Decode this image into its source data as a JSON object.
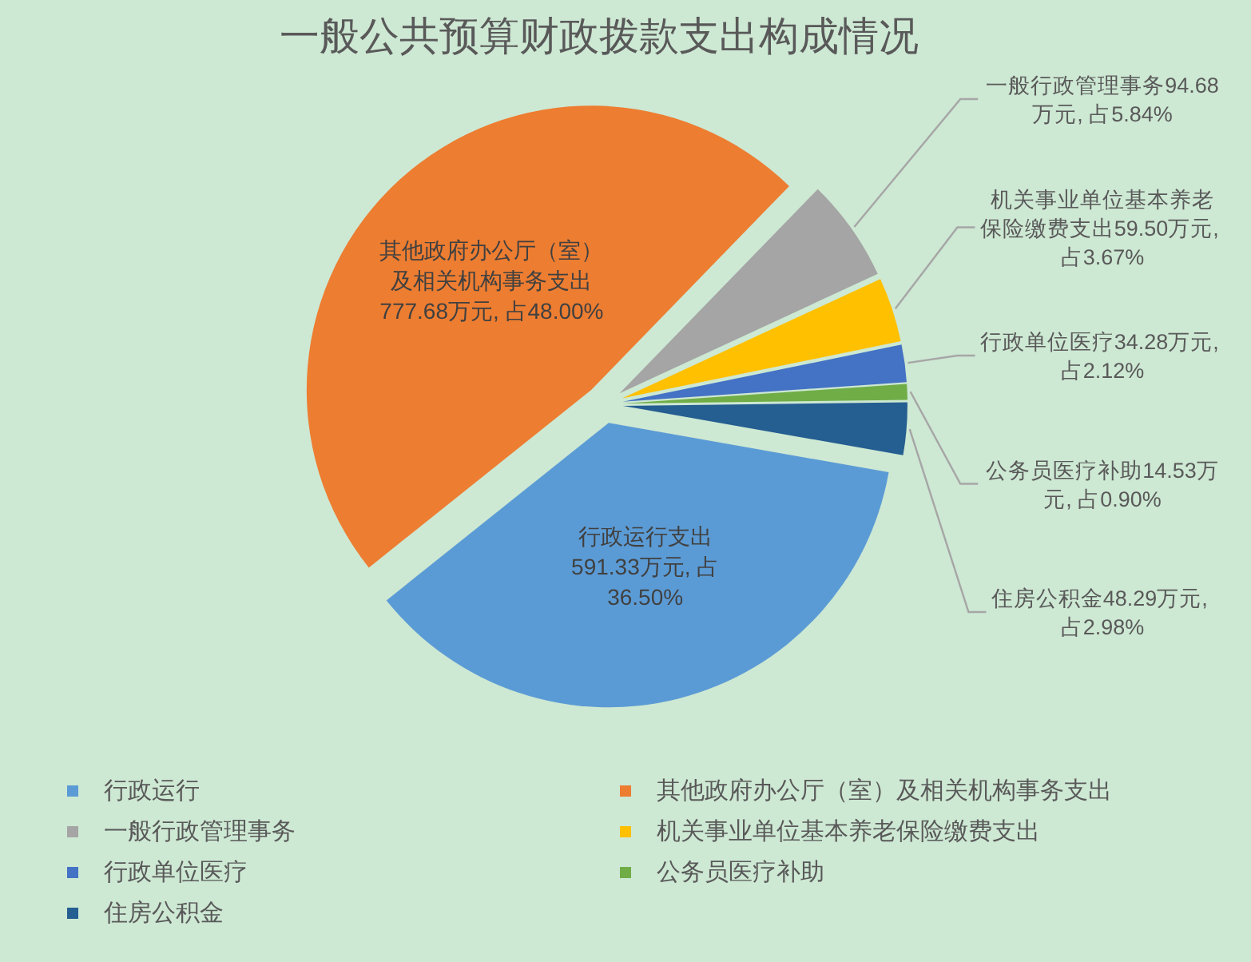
{
  "chart_data": {
    "type": "pie",
    "title": "一般公共预算财政拨款支出构成情况",
    "categories": [
      "行政运行",
      "其他政府办公厅（室）及相关机构事务支出",
      "一般行政管理事务",
      "机关事业单位基本养老保险缴费支出",
      "行政单位医疗",
      "公务员医疗补助",
      "住房公积金"
    ],
    "values": [
      591.33,
      777.68,
      94.68,
      59.5,
      34.28,
      14.53,
      48.29
    ],
    "colors": [
      "#5b9bd5",
      "#ed7d31",
      "#a5a5a5",
      "#ffc000",
      "#4472c4",
      "#70ad47",
      "#255e91"
    ],
    "value_labels": [
      "行政运行支出591.33万元, 占36.50%",
      "其他政府办公厅（室）及相关机构事务支出777.68万元, 占48.00%",
      "一般行政管理事务94.68万元, 占5.84%",
      "机关事业单位基本养老保险缴费支出59.50万元, 占3.67%",
      "行政单位医疗34.28万元, 占2.12%",
      "公务员医疗补助14.53万元, 占0.90%",
      "住房公积金48.29万元, 占2.98%"
    ],
    "legend": "bottom"
  }
}
